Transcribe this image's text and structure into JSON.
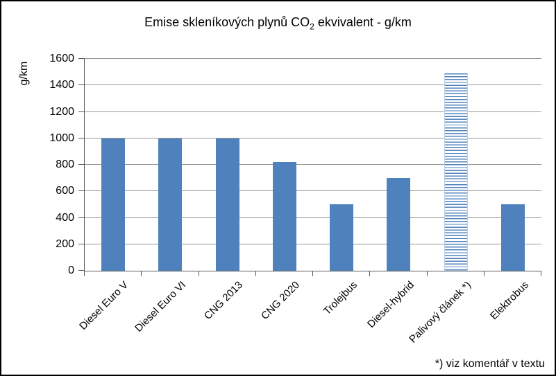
{
  "window": {
    "background": "#ffffff",
    "border_color": "#000000"
  },
  "chart_data": {
    "type": "bar",
    "title": "Emise skleníkových plynů CO2 ekvivalent - g/km",
    "title_parts": {
      "main": "Emise skleníkových plynů CO",
      "sub": "2",
      "rest": " ekvivalent - g/km"
    },
    "xlabel": "",
    "ylabel": "g/km",
    "ylim": [
      0,
      1600
    ],
    "yticks": [
      0,
      200,
      400,
      600,
      800,
      1000,
      1200,
      1400,
      1600
    ],
    "grid": "horizontal-on",
    "legend": "none",
    "categories": [
      "Diesel Euro V",
      "Diesel Euro VI",
      "CNG 2013",
      "CNG 2020",
      "Trolejbus",
      "Diesel-hybrid",
      "Palivový článek *)",
      "Elektrobus"
    ],
    "values": [
      1000,
      1000,
      1000,
      820,
      500,
      700,
      1490,
      500
    ],
    "bar_fill_styles": [
      "solid",
      "solid",
      "solid",
      "solid",
      "solid",
      "solid",
      "hatched-horizontal",
      "solid"
    ],
    "footnote": "*) viz komentář v textu",
    "colors": {
      "bar": "#4f81bd",
      "hatch_line": "#4f81bd",
      "gridline": "#969696",
      "axis": "#595959",
      "text": "#000000"
    }
  }
}
